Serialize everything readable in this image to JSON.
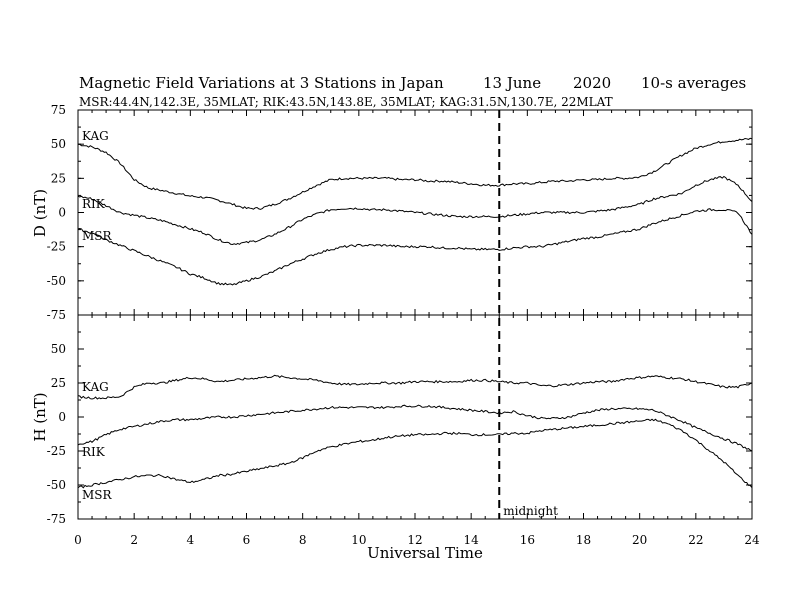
{
  "figure": {
    "title_parts": [
      "Magnetic Field Variations at 3 Stations in Japan",
      "13 June",
      "2020",
      "10-s averages"
    ],
    "subtitle": "MSR:44.4N,142.3E, 35MLAT;  RIK:43.5N,143.8E, 35MLAT;  KAG:31.5N,130.7E, 22MLAT",
    "midnight_label": "midnight",
    "midnight_ut": 15,
    "line_color": "#000000",
    "background": "#ffffff"
  },
  "chart_data": [
    {
      "type": "line",
      "panel": "top",
      "ylabel": "D (nT)",
      "xlabel": "",
      "xlim": [
        0,
        24
      ],
      "ylim": [
        -75,
        75
      ],
      "x_ticks": [
        0,
        2,
        4,
        6,
        8,
        10,
        12,
        14,
        16,
        18,
        20,
        22,
        24
      ],
      "y_ticks": [
        75,
        50,
        25,
        0,
        -25,
        -50,
        -75
      ],
      "x": [
        0,
        0.5,
        1,
        1.5,
        2,
        2.5,
        3,
        3.5,
        4,
        4.5,
        5,
        5.5,
        6,
        6.5,
        7,
        7.5,
        8,
        8.5,
        9,
        9.5,
        10,
        10.5,
        11,
        11.5,
        12,
        12.5,
        13,
        13.5,
        14,
        14.5,
        15,
        15.5,
        16,
        16.5,
        17,
        17.5,
        18,
        18.5,
        19,
        19.5,
        20,
        20.5,
        21,
        21.5,
        22,
        22.5,
        23,
        23.5,
        24
      ],
      "series": [
        {
          "name": "KAG",
          "values": [
            50,
            48,
            44,
            36,
            24,
            18,
            16,
            14,
            12,
            11,
            9,
            6,
            3,
            3,
            6,
            10,
            15,
            20,
            24,
            25,
            25,
            25,
            25,
            24,
            24,
            23,
            23,
            22,
            21,
            20,
            20,
            21,
            21,
            22,
            23,
            23,
            24,
            24,
            25,
            25,
            26,
            30,
            36,
            42,
            47,
            50,
            52,
            53,
            54
          ]
        },
        {
          "name": "RIK",
          "values": [
            12,
            10,
            5,
            0,
            -2,
            -4,
            -6,
            -9,
            -12,
            -15,
            -20,
            -23,
            -22,
            -20,
            -16,
            -11,
            -5,
            -1,
            2,
            3,
            3,
            2,
            2,
            1,
            0,
            -1,
            -2,
            -3,
            -3,
            -3,
            -3,
            -2,
            -1,
            0,
            0,
            0,
            0,
            1,
            2,
            4,
            6,
            10,
            12,
            14,
            20,
            24,
            26,
            20,
            8
          ]
        },
        {
          "name": "MSR",
          "values": [
            -12,
            -15,
            -20,
            -24,
            -28,
            -32,
            -36,
            -40,
            -45,
            -48,
            -52,
            -53,
            -50,
            -47,
            -43,
            -38,
            -34,
            -30,
            -27,
            -25,
            -24,
            -24,
            -24,
            -25,
            -25,
            -25,
            -26,
            -26,
            -27,
            -27,
            -27,
            -26,
            -25,
            -25,
            -23,
            -21,
            -19,
            -18,
            -16,
            -14,
            -12,
            -8,
            -5,
            -2,
            1,
            2,
            2,
            0,
            -16
          ]
        }
      ]
    },
    {
      "type": "line",
      "panel": "bottom",
      "ylabel": "H (nT)",
      "xlabel": "Universal Time",
      "xlim": [
        0,
        24
      ],
      "ylim": [
        -75,
        75
      ],
      "x_ticks": [
        0,
        2,
        4,
        6,
        8,
        10,
        12,
        14,
        16,
        18,
        20,
        22,
        24
      ],
      "y_ticks": [
        75,
        50,
        25,
        0,
        -25,
        -50,
        -75
      ],
      "x": [
        0,
        0.5,
        1,
        1.5,
        2,
        2.5,
        3,
        3.5,
        4,
        4.5,
        5,
        5.5,
        6,
        6.5,
        7,
        7.5,
        8,
        8.5,
        9,
        9.5,
        10,
        10.5,
        11,
        11.5,
        12,
        12.5,
        13,
        13.5,
        14,
        14.5,
        15,
        15.5,
        16,
        16.5,
        17,
        17.5,
        18,
        18.5,
        19,
        19.5,
        20,
        20.5,
        21,
        21.5,
        22,
        22.5,
        23,
        23.5,
        24
      ],
      "series": [
        {
          "name": "KAG",
          "values": [
            15,
            14,
            14,
            15,
            22,
            25,
            25,
            27,
            29,
            28,
            26,
            27,
            28,
            29,
            30,
            29,
            28,
            27,
            25,
            24,
            24,
            25,
            25,
            25,
            26,
            26,
            26,
            26,
            27,
            27,
            26,
            25,
            25,
            23,
            23,
            24,
            25,
            26,
            26,
            28,
            29,
            30,
            29,
            28,
            26,
            24,
            22,
            22,
            25
          ]
        },
        {
          "name": "RIK",
          "values": [
            -20,
            -18,
            -13,
            -9,
            -7,
            -5,
            -3,
            -2,
            -2,
            -1,
            0,
            0,
            1,
            2,
            3,
            4,
            5,
            6,
            7,
            7,
            7,
            7,
            7,
            8,
            8,
            8,
            7,
            6,
            5,
            4,
            3,
            4,
            1,
            -1,
            -1,
            0,
            3,
            5,
            6,
            6,
            6,
            5,
            1,
            -3,
            -8,
            -12,
            -16,
            -20,
            -25
          ]
        },
        {
          "name": "MSR",
          "values": [
            -52,
            -50,
            -48,
            -46,
            -44,
            -43,
            -43,
            -46,
            -48,
            -46,
            -43,
            -42,
            -40,
            -38,
            -36,
            -34,
            -30,
            -25,
            -22,
            -20,
            -18,
            -17,
            -15,
            -14,
            -13,
            -13,
            -12,
            -12,
            -13,
            -13,
            -13,
            -12,
            -12,
            -10,
            -9,
            -8,
            -7,
            -6,
            -5,
            -4,
            -3,
            -2,
            -5,
            -10,
            -17,
            -25,
            -33,
            -43,
            -52
          ]
        }
      ]
    }
  ]
}
